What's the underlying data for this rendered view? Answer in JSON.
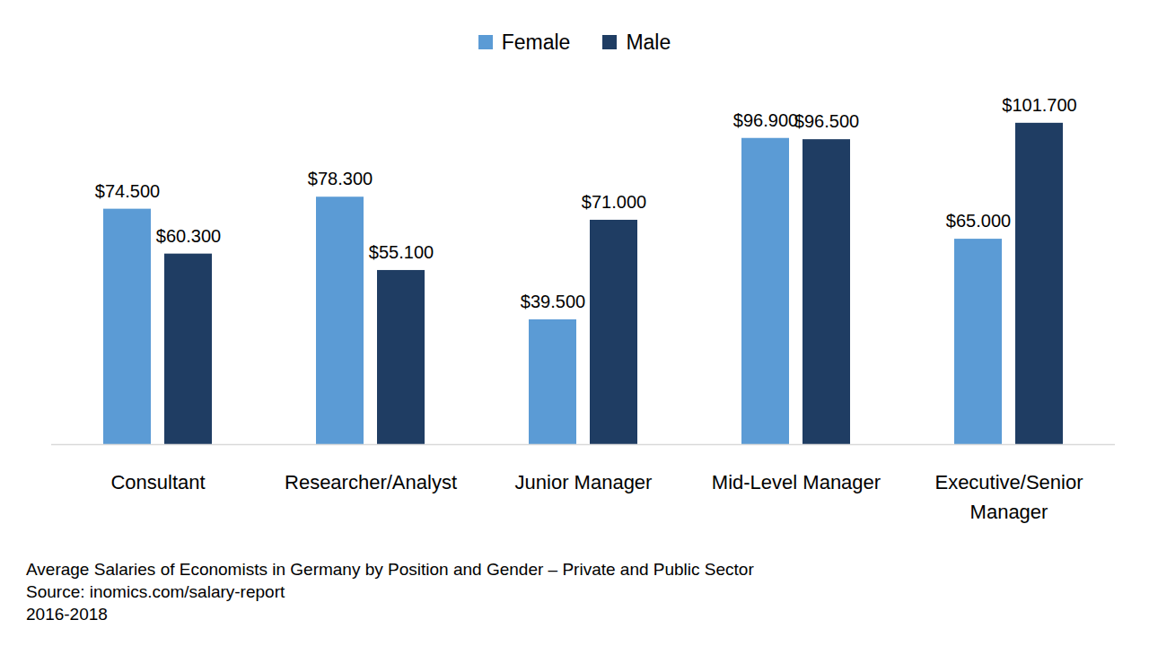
{
  "chart_data": {
    "type": "bar",
    "caption": [
      "Average Salaries of Economists in Germany by Position and Gender – Private and Public Sector",
      "Source: inomics.com/salary-report",
      "2016-2018"
    ],
    "categories": [
      "Consultant",
      "Researcher/Analyst",
      "Junior Manager",
      "Mid-Level Manager",
      "Executive/Senior Manager"
    ],
    "series": [
      {
        "name": "Female",
        "color": "#5b9bd5",
        "values": [
          74500,
          78300,
          39500,
          96900,
          65000
        ],
        "value_labels": [
          "$74.500",
          "$78.300",
          "$39.500",
          "$96.900",
          "$65.000"
        ]
      },
      {
        "name": "Male",
        "color": "#1f3d63",
        "values": [
          60300,
          55100,
          71000,
          96500,
          101700
        ],
        "value_labels": [
          "$60.300",
          "$55.100",
          "$71.000",
          "$96.500",
          "$101.700"
        ]
      }
    ],
    "ylim": [
      0,
      115000
    ],
    "grid": false,
    "legend": "top",
    "data_labels": true,
    "tick_labels": "x"
  }
}
